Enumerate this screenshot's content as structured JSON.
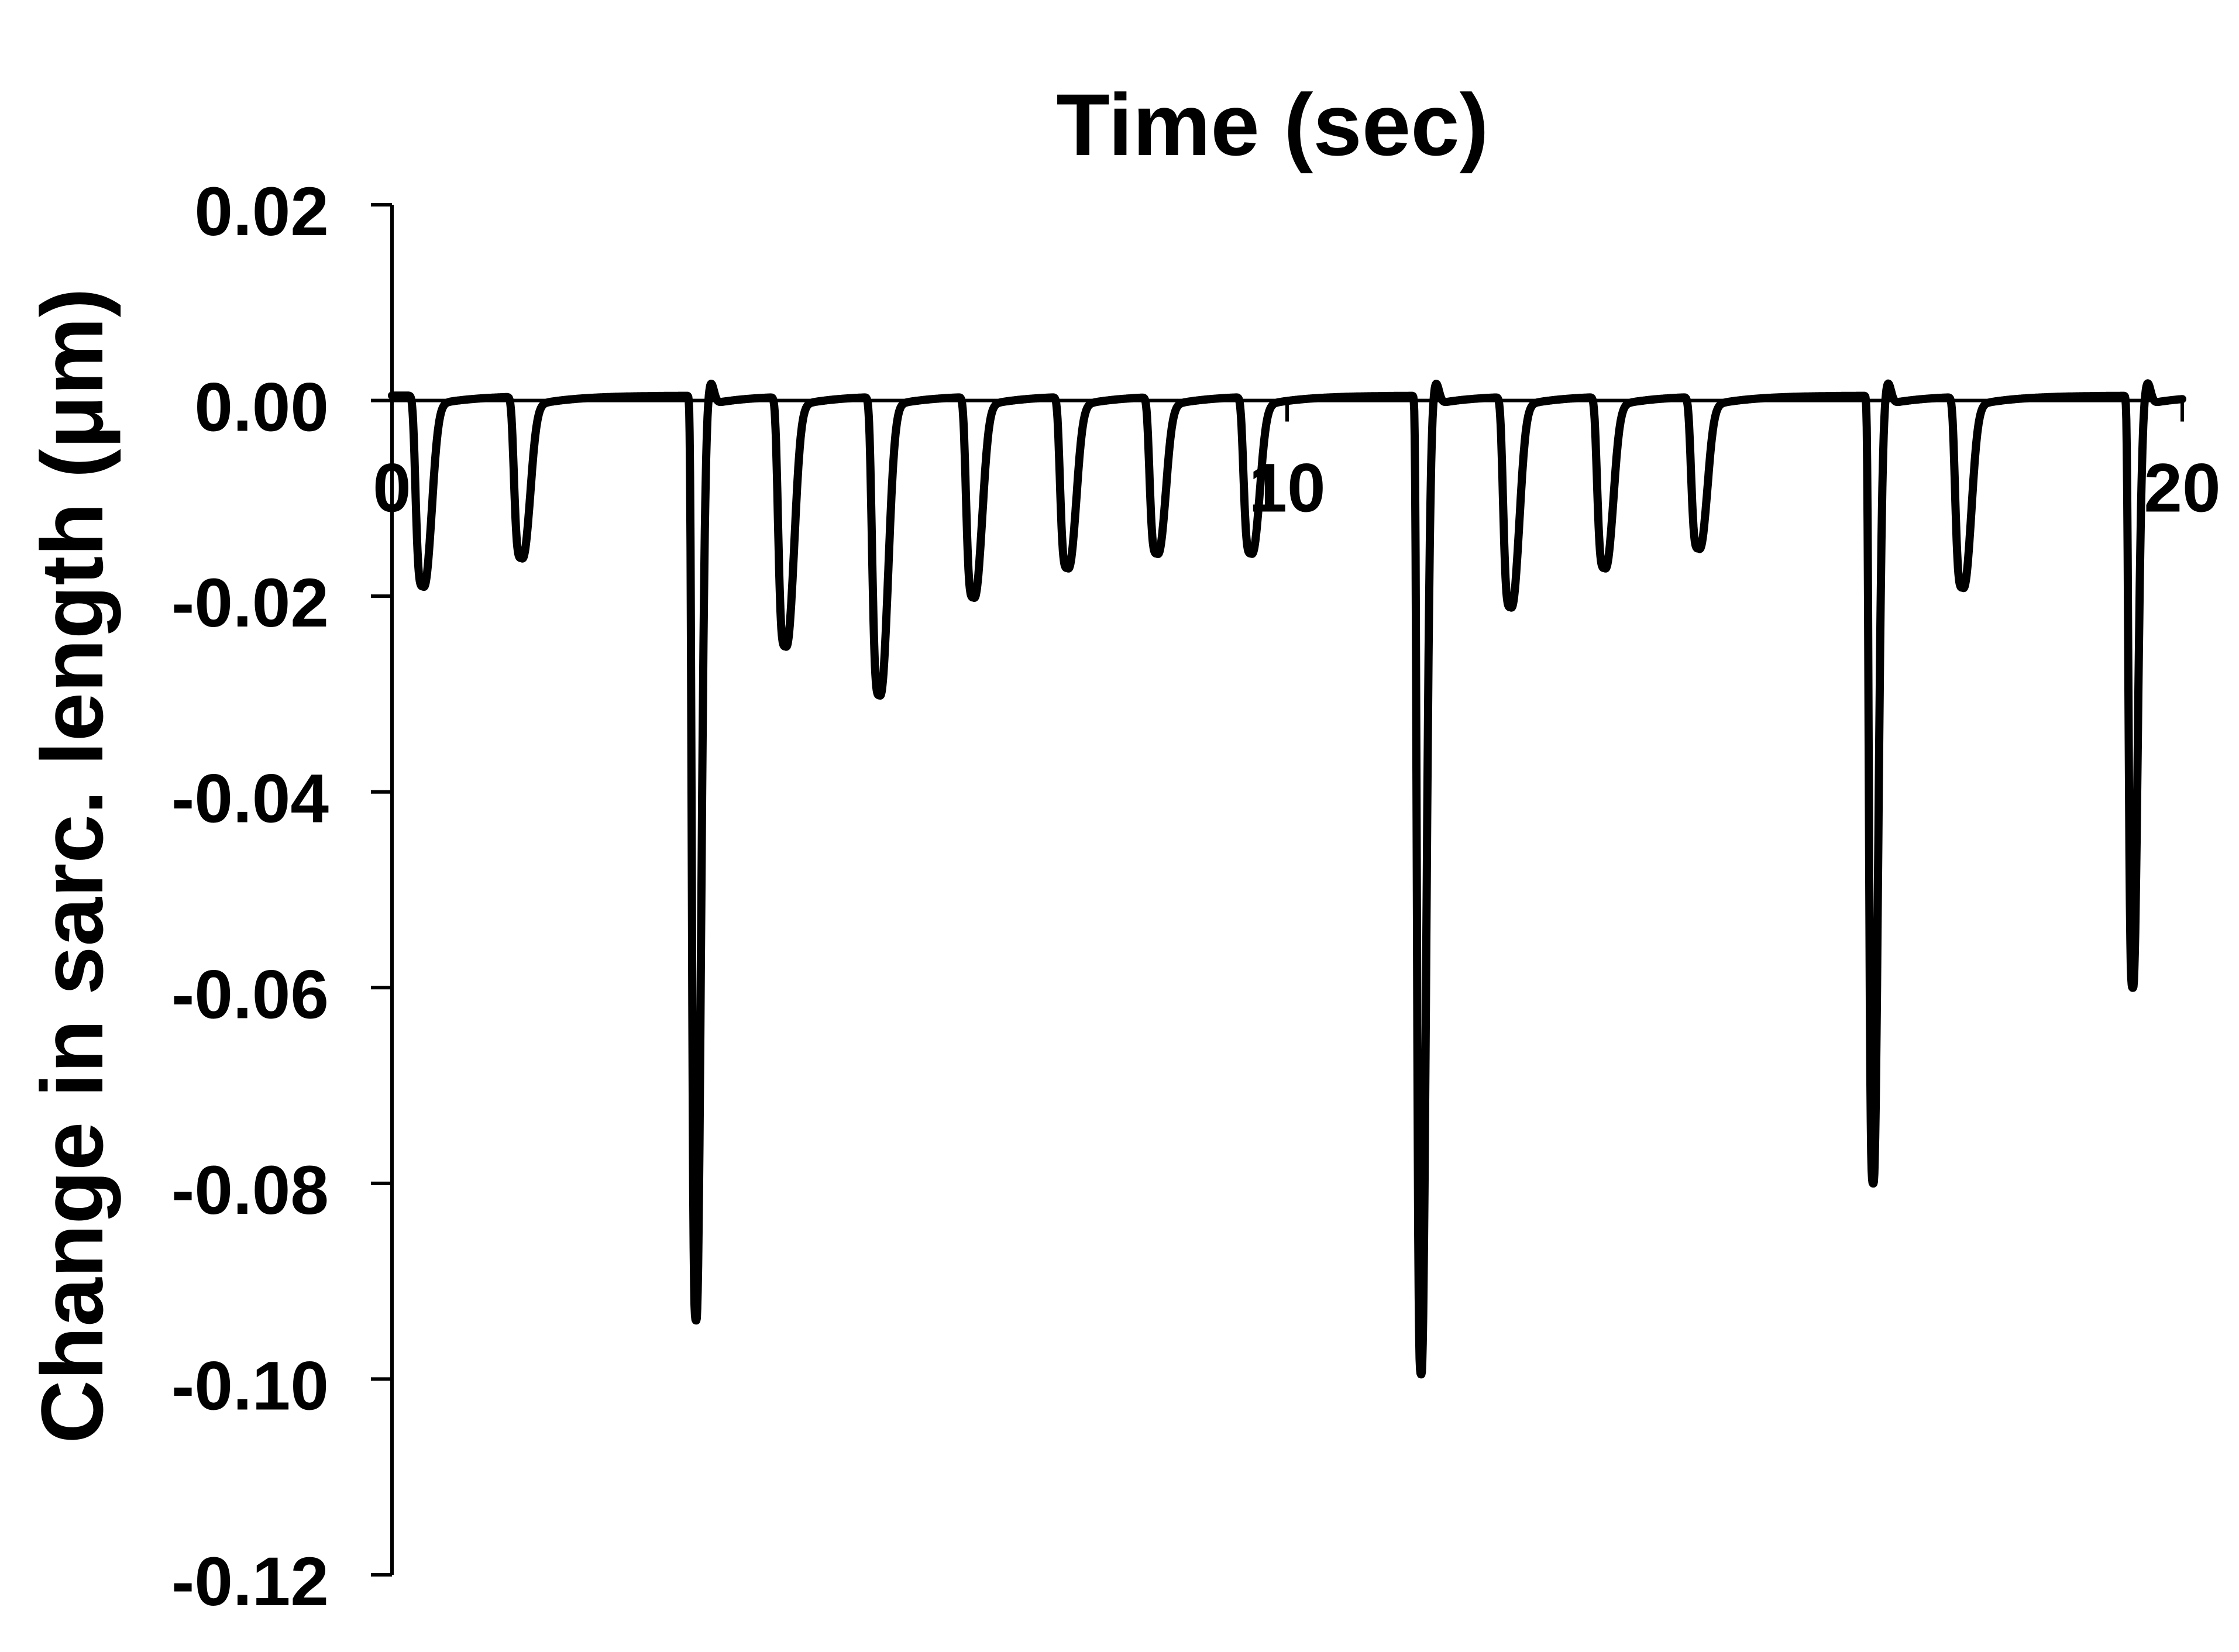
{
  "chart_data": {
    "type": "line",
    "title": "",
    "xlabel": "Time (sec)",
    "ylabel": "Change in sarc. length (μm)",
    "xlim": [
      0,
      20
    ],
    "ylim": [
      -0.12,
      0.02
    ],
    "x_ticks": [
      0,
      10,
      20
    ],
    "x_tick_labels": [
      "0",
      "10",
      "20"
    ],
    "y_ticks": [
      0.02,
      0.0,
      -0.02,
      -0.04,
      -0.06,
      -0.08,
      -0.1,
      -0.12
    ],
    "y_tick_labels": [
      "0.02",
      "0.00",
      "-0.02",
      "-0.04",
      "-0.06",
      "-0.08",
      "-0.10",
      "-0.12"
    ],
    "grid": false,
    "legend": "none",
    "line_color": "#000000",
    "baseline": 0.0005,
    "series": [
      {
        "peaks": [
          {
            "t": 0.35,
            "depth": -0.0195
          },
          {
            "t": 1.45,
            "depth": -0.0165
          },
          {
            "t": 3.4,
            "depth": -0.0945
          },
          {
            "t": 4.4,
            "depth": -0.0255
          },
          {
            "t": 5.45,
            "depth": -0.0305
          },
          {
            "t": 6.5,
            "depth": -0.0205
          },
          {
            "t": 7.55,
            "depth": -0.0175
          },
          {
            "t": 8.55,
            "depth": -0.016
          },
          {
            "t": 9.6,
            "depth": -0.016
          },
          {
            "t": 11.5,
            "depth": -0.1
          },
          {
            "t": 12.5,
            "depth": -0.0215
          },
          {
            "t": 13.55,
            "depth": -0.0175
          },
          {
            "t": 14.6,
            "depth": -0.0155
          },
          {
            "t": 16.55,
            "depth": -0.0805
          },
          {
            "t": 17.55,
            "depth": -0.0195
          },
          {
            "t": 19.45,
            "depth": -0.0605
          }
        ]
      }
    ]
  }
}
